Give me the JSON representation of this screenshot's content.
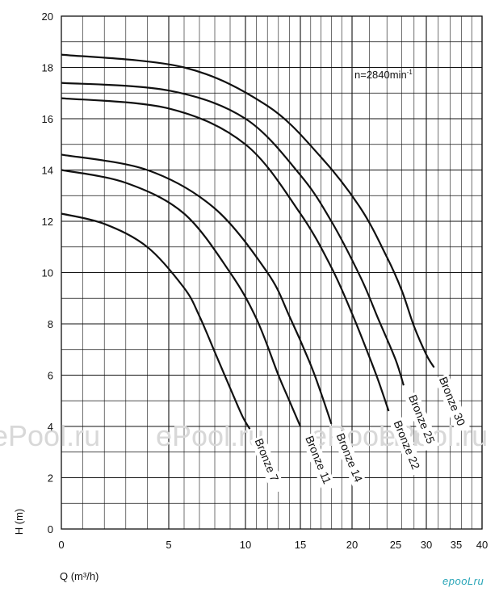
{
  "chart_data": {
    "type": "line",
    "xlabel": "Q (m³/h)",
    "ylabel": "H (m)",
    "xlim": [
      0,
      40
    ],
    "ylim": [
      0,
      20
    ],
    "x_ticks": [
      "0",
      "5",
      "10",
      "15",
      "20",
      "25",
      "30",
      "35",
      "40"
    ],
    "y_ticks": [
      "0",
      "2",
      "4",
      "6",
      "8",
      "10",
      "12",
      "14",
      "16",
      "18",
      "20"
    ],
    "x_grid": "log-cycle",
    "y_grid_step": 1,
    "annotation": "n=2840min",
    "annotation_sup": "-1",
    "series": [
      {
        "name": "Bronze 7",
        "x": [
          0,
          2,
          4,
          6,
          7,
          8,
          9,
          9.8,
          10.4
        ],
        "y": [
          12.3,
          11.9,
          11.0,
          9.4,
          8.3,
          6.9,
          5.5,
          4.4,
          3.9
        ]
      },
      {
        "name": "Bronze 11",
        "x": [
          0,
          3,
          6,
          9,
          11,
          13,
          14,
          15
        ],
        "y": [
          14.0,
          13.5,
          12.3,
          10.0,
          8.2,
          6.0,
          5.0,
          4.0
        ]
      },
      {
        "name": "Bronze 14",
        "x": [
          0,
          4,
          8,
          12,
          14,
          16,
          17,
          18
        ],
        "y": [
          14.6,
          14.0,
          12.5,
          10.0,
          8.3,
          6.4,
          5.3,
          4.1
        ]
      },
      {
        "name": "Bronze 22",
        "x": [
          0,
          5,
          10,
          15,
          18,
          20,
          22,
          23,
          24.2
        ],
        "y": [
          16.8,
          16.4,
          15.0,
          12.3,
          10.2,
          8.4,
          6.7,
          5.8,
          4.6
        ]
      },
      {
        "name": "Bronze 25",
        "x": [
          0,
          5,
          10,
          15,
          18,
          21,
          23,
          25,
          26.3
        ],
        "y": [
          17.4,
          17.1,
          16.0,
          13.8,
          12.0,
          9.8,
          8.2,
          6.6,
          5.6
        ]
      },
      {
        "name": "Bronze 30",
        "x": [
          0,
          6,
          12,
          17,
          21,
          24,
          26,
          28,
          30,
          31.3
        ],
        "y": [
          18.5,
          18.0,
          16.5,
          14.5,
          12.5,
          10.6,
          9.3,
          7.9,
          6.8,
          6.3
        ]
      }
    ]
  },
  "watermarks": [
    "ePool.ru",
    "ePool.ru",
    "ePool.ru",
    "ePool.ru"
  ],
  "logo_text": "epooLru"
}
